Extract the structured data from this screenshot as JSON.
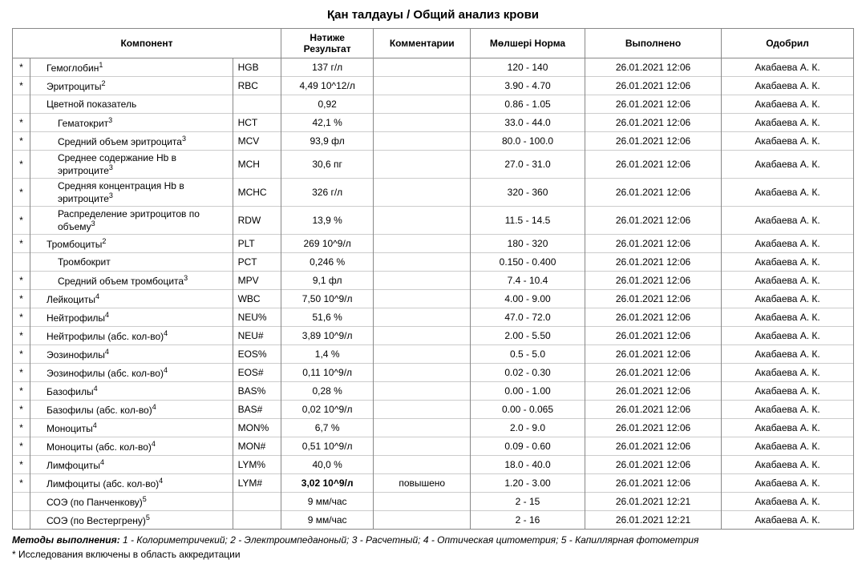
{
  "title": "Қан талдауы / Общий анализ крови",
  "columns": [
    "Компонент",
    "Нәтиже Результат",
    "Комментарии",
    "Мөлшері Норма",
    "Выполнено",
    "Одобрил"
  ],
  "rows": [
    {
      "star": "*",
      "indent": 1,
      "name": "Гемоглобин",
      "sup": "1",
      "code": "HGB",
      "result": "137 г/л",
      "comment": "",
      "norm": "120 - 140",
      "done": "26.01.2021 12:06",
      "approved": "Акабаева А. К."
    },
    {
      "star": "*",
      "indent": 1,
      "name": "Эритроциты",
      "sup": "2",
      "code": "RBC",
      "result": "4,49 10^12/л",
      "comment": "",
      "norm": "3.90 - 4.70",
      "done": "26.01.2021 12:06",
      "approved": "Акабаева А. К."
    },
    {
      "star": "",
      "indent": 1,
      "name": "Цветной показатель",
      "sup": "",
      "code": "",
      "result": "0,92",
      "comment": "",
      "norm": "0.86 - 1.05",
      "done": "26.01.2021 12:06",
      "approved": "Акабаева А. К."
    },
    {
      "star": "*",
      "indent": 2,
      "name": "Гематокрит",
      "sup": "3",
      "code": "HCT",
      "result": "42,1 %",
      "comment": "",
      "norm": "33.0 - 44.0",
      "done": "26.01.2021 12:06",
      "approved": "Акабаева А. К."
    },
    {
      "star": "*",
      "indent": 2,
      "name": "Средний объем эритроцита",
      "sup": "3",
      "code": "MCV",
      "result": "93,9 фл",
      "comment": "",
      "norm": "80.0 - 100.0",
      "done": "26.01.2021 12:06",
      "approved": "Акабаева А. К."
    },
    {
      "star": "*",
      "indent": 2,
      "name": "Среднее содержание Hb в эритроците",
      "sup": "3",
      "code": "MCH",
      "result": "30,6 пг",
      "comment": "",
      "norm": "27.0 - 31.0",
      "done": "26.01.2021 12:06",
      "approved": "Акабаева А. К."
    },
    {
      "star": "*",
      "indent": 2,
      "name": "Средняя концентрация Hb в эритроците",
      "sup": "3",
      "code": "MCHC",
      "result": "326 г/л",
      "comment": "",
      "norm": "320 - 360",
      "done": "26.01.2021 12:06",
      "approved": "Акабаева А. К."
    },
    {
      "star": "*",
      "indent": 2,
      "name": "Распределение эритроцитов по объему",
      "sup": "3",
      "code": "RDW",
      "result": "13,9 %",
      "comment": "",
      "norm": "11.5 - 14.5",
      "done": "26.01.2021 12:06",
      "approved": "Акабаева А. К."
    },
    {
      "star": "*",
      "indent": 1,
      "name": "Тромбоциты",
      "sup": "2",
      "code": "PLT",
      "result": "269 10^9/л",
      "comment": "",
      "norm": "180 - 320",
      "done": "26.01.2021 12:06",
      "approved": "Акабаева А. К."
    },
    {
      "star": "",
      "indent": 2,
      "name": "Тромбокрит",
      "sup": "",
      "code": "PCT",
      "result": "0,246 %",
      "comment": "",
      "norm": "0.150 - 0.400",
      "done": "26.01.2021 12:06",
      "approved": "Акабаева А. К."
    },
    {
      "star": "*",
      "indent": 2,
      "name": "Средний объем тромбоцита",
      "sup": "3",
      "code": "MPV",
      "result": "9,1 фл",
      "comment": "",
      "norm": "7.4 - 10.4",
      "done": "26.01.2021 12:06",
      "approved": "Акабаева А. К."
    },
    {
      "star": "*",
      "indent": 1,
      "name": "Лейкоциты",
      "sup": "4",
      "code": "WBC",
      "result": "7,50 10^9/л",
      "comment": "",
      "norm": "4.00 - 9.00",
      "done": "26.01.2021 12:06",
      "approved": "Акабаева А. К."
    },
    {
      "star": "*",
      "indent": 1,
      "name": "Нейтрофилы",
      "sup": "4",
      "code": "NEU%",
      "result": "51,6 %",
      "comment": "",
      "norm": "47.0 - 72.0",
      "done": "26.01.2021 12:06",
      "approved": "Акабаева А. К."
    },
    {
      "star": "*",
      "indent": 1,
      "name": "Нейтрофилы (абс. кол-во)",
      "sup": "4",
      "code": "NEU#",
      "result": "3,89 10^9/л",
      "comment": "",
      "norm": "2.00 - 5.50",
      "done": "26.01.2021 12:06",
      "approved": "Акабаева А. К."
    },
    {
      "star": "*",
      "indent": 1,
      "name": "Эозинофилы",
      "sup": "4",
      "code": "EOS%",
      "result": "1,4 %",
      "comment": "",
      "norm": "0.5 - 5.0",
      "done": "26.01.2021 12:06",
      "approved": "Акабаева А. К."
    },
    {
      "star": "*",
      "indent": 1,
      "name": "Эозинофилы (абс. кол-во)",
      "sup": "4",
      "code": "EOS#",
      "result": "0,11 10^9/л",
      "comment": "",
      "norm": "0.02 - 0.30",
      "done": "26.01.2021 12:06",
      "approved": "Акабаева А. К."
    },
    {
      "star": "*",
      "indent": 1,
      "name": "Базофилы",
      "sup": "4",
      "code": "BAS%",
      "result": "0,28 %",
      "comment": "",
      "norm": "0.00 - 1.00",
      "done": "26.01.2021 12:06",
      "approved": "Акабаева А. К."
    },
    {
      "star": "*",
      "indent": 1,
      "name": "Базофилы (абс. кол-во)",
      "sup": "4",
      "code": "BAS#",
      "result": "0,02 10^9/л",
      "comment": "",
      "norm": "0.00 - 0.065",
      "done": "26.01.2021 12:06",
      "approved": "Акабаева А. К."
    },
    {
      "star": "*",
      "indent": 1,
      "name": "Моноциты",
      "sup": "4",
      "code": "MON%",
      "result": "6,7 %",
      "comment": "",
      "norm": "2.0 - 9.0",
      "done": "26.01.2021 12:06",
      "approved": "Акабаева А. К."
    },
    {
      "star": "*",
      "indent": 1,
      "name": "Моноциты (абс. кол-во)",
      "sup": "4",
      "code": "MON#",
      "result": "0,51 10^9/л",
      "comment": "",
      "norm": "0.09 - 0.60",
      "done": "26.01.2021 12:06",
      "approved": "Акабаева А. К."
    },
    {
      "star": "*",
      "indent": 1,
      "name": "Лимфоциты",
      "sup": "4",
      "code": "LYM%",
      "result": "40,0 %",
      "comment": "",
      "norm": "18.0 - 40.0",
      "done": "26.01.2021 12:06",
      "approved": "Акабаева А. К."
    },
    {
      "star": "*",
      "indent": 1,
      "name": "Лимфоциты (абс. кол-во)",
      "sup": "4",
      "code": "LYM#",
      "result": "3,02 10^9/л",
      "result_bold": true,
      "comment": "повышено",
      "norm": "1.20 - 3.00",
      "done": "26.01.2021 12:06",
      "approved": "Акабаева А. К."
    },
    {
      "star": "",
      "indent": 1,
      "name": "СОЭ (по Панченкову)",
      "sup": "5",
      "code": "",
      "result": "9 мм/час",
      "comment": "",
      "norm": "2 - 15",
      "done": "26.01.2021 12:21",
      "approved": "Акабаева А. К."
    },
    {
      "star": "",
      "indent": 1,
      "name": "СОЭ (по Вестергрену)",
      "sup": "5",
      "code": "",
      "result": "9 мм/час",
      "comment": "",
      "norm": "2 - 16",
      "done": "26.01.2021 12:21",
      "approved": "Акабаева А. К."
    }
  ],
  "footer1_label": "Методы выполнения:",
  "footer1_text": " 1 - Колориметричекий; 2 - Электроимпеданоный; 3 - Расчетный; 4 - Оптическая цитометрия; 5 - Капиллярная фотометрия",
  "footer2": "* Исследования включены в область аккредитации"
}
